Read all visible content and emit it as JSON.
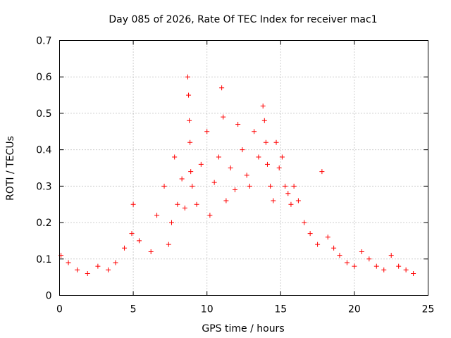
{
  "chart_data": {
    "type": "scatter",
    "title": "Day 085 of 2026, Rate Of TEC Index for receiver mac1",
    "xlabel": "GPS time / hours",
    "ylabel": "ROTI / TECUs",
    "xlim": [
      0,
      25
    ],
    "ylim": [
      0,
      0.7
    ],
    "xticks": [
      0,
      5,
      10,
      15,
      20,
      25
    ],
    "xtick_labels": [
      "0",
      "5",
      "10",
      "15",
      "20",
      "25"
    ],
    "yticks": [
      0,
      0.1,
      0.2,
      0.3,
      0.4,
      0.5,
      0.6,
      0.7
    ],
    "ytick_labels": [
      "0",
      "0.1",
      "0.2",
      "0.3",
      "0.4",
      "0.5",
      "0.6",
      "0.7"
    ],
    "grid": true,
    "marker": "+",
    "color": "#ff0000",
    "series": [
      {
        "name": "ROTI",
        "x": [
          0.1,
          0.6,
          1.2,
          1.9,
          2.6,
          3.3,
          3.8,
          4.4,
          4.9,
          5.0,
          5.4,
          6.2,
          6.6,
          7.1,
          7.4,
          7.6,
          7.8,
          8.0,
          8.3,
          8.5,
          8.7,
          8.75,
          8.8,
          8.85,
          8.9,
          9.0,
          9.3,
          9.6,
          10.0,
          10.2,
          10.5,
          10.8,
          11.0,
          11.1,
          11.3,
          11.6,
          11.9,
          12.1,
          12.4,
          12.7,
          12.9,
          13.2,
          13.5,
          13.8,
          13.9,
          14.0,
          14.1,
          14.3,
          14.5,
          14.7,
          14.9,
          15.1,
          15.3,
          15.5,
          15.7,
          15.9,
          16.2,
          16.6,
          17.0,
          17.5,
          17.8,
          18.2,
          18.6,
          19.0,
          19.5,
          20.0,
          20.5,
          21.0,
          21.5,
          22.0,
          22.5,
          23.0,
          23.5,
          24.0
        ],
        "y": [
          0.11,
          0.09,
          0.07,
          0.06,
          0.08,
          0.07,
          0.09,
          0.13,
          0.17,
          0.25,
          0.15,
          0.12,
          0.22,
          0.3,
          0.14,
          0.2,
          0.38,
          0.25,
          0.32,
          0.24,
          0.6,
          0.55,
          0.48,
          0.42,
          0.34,
          0.3,
          0.25,
          0.36,
          0.45,
          0.22,
          0.31,
          0.38,
          0.57,
          0.49,
          0.26,
          0.35,
          0.29,
          0.47,
          0.4,
          0.33,
          0.3,
          0.45,
          0.38,
          0.52,
          0.48,
          0.42,
          0.36,
          0.3,
          0.26,
          0.42,
          0.35,
          0.38,
          0.3,
          0.28,
          0.25,
          0.3,
          0.26,
          0.2,
          0.17,
          0.14,
          0.34,
          0.16,
          0.13,
          0.11,
          0.09,
          0.08,
          0.12,
          0.1,
          0.08,
          0.07,
          0.11,
          0.08,
          0.07,
          0.06
        ]
      }
    ]
  }
}
